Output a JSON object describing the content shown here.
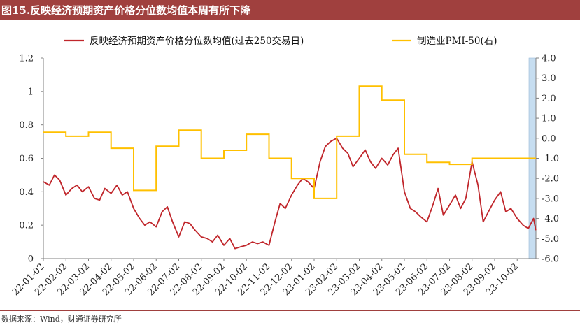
{
  "title": "图15.反映经济预期资产价格分位数均值本周有所下降",
  "source": "数据来源：Wind，财通证券研究所",
  "colors": {
    "title_bg": "#a0403e",
    "series1": "#c0262b",
    "series2": "#ffc000",
    "shade": "#c6ddf0"
  },
  "chart_data": {
    "type": "line",
    "left_axis": {
      "ylim": [
        0,
        1.2
      ],
      "ticks": [
        "0",
        "0.2",
        "0.4",
        "0.6",
        "0.8",
        "1",
        "1.2"
      ]
    },
    "right_axis": {
      "ylim": [
        -6,
        4
      ],
      "ticks": [
        "-6.0",
        "-5.0",
        "-4.0",
        "-3.0",
        "-2.0",
        "-1.0",
        "0.0",
        "1.0",
        "2.0",
        "3.0",
        "4.0"
      ]
    },
    "x_categories": [
      "22-01-02",
      "22-02-02",
      "22-03-02",
      "22-04-02",
      "22-05-02",
      "22-06-02",
      "22-07-02",
      "22-08-02",
      "22-09-02",
      "22-10-02",
      "22-11-02",
      "22-12-02",
      "23-01-02",
      "23-02-02",
      "23-03-02",
      "23-04-02",
      "23-05-02",
      "23-06-02",
      "23-07-02",
      "23-08-02",
      "23-09-02",
      "23-10-02"
    ],
    "grid": false,
    "legend_placement": "top",
    "series": [
      {
        "name": "反映经济预期资产价格分位数均值(过去250交易日)",
        "axis": "left",
        "x": [
          "22-01-02",
          "22-01-10",
          "22-01-17",
          "22-01-24",
          "22-02-02",
          "22-02-10",
          "22-02-17",
          "22-02-24",
          "22-03-02",
          "22-03-10",
          "22-03-17",
          "22-03-24",
          "22-04-02",
          "22-04-10",
          "22-04-17",
          "22-04-24",
          "22-05-02",
          "22-05-10",
          "22-05-17",
          "22-05-24",
          "22-06-02",
          "22-06-10",
          "22-06-17",
          "22-06-24",
          "22-07-02",
          "22-07-10",
          "22-07-17",
          "22-07-24",
          "22-08-02",
          "22-08-10",
          "22-08-17",
          "22-08-24",
          "22-09-02",
          "22-09-10",
          "22-09-17",
          "22-09-24",
          "22-10-02",
          "22-10-10",
          "22-10-17",
          "22-10-24",
          "22-11-02",
          "22-11-10",
          "22-11-17",
          "22-11-24",
          "22-12-02",
          "22-12-10",
          "22-12-17",
          "22-12-24",
          "23-01-02",
          "23-01-10",
          "23-01-17",
          "23-01-24",
          "23-02-02",
          "23-02-10",
          "23-02-17",
          "23-02-24",
          "23-03-02",
          "23-03-10",
          "23-03-17",
          "23-03-24",
          "23-04-02",
          "23-04-10",
          "23-04-17",
          "23-04-24",
          "23-05-02",
          "23-05-10",
          "23-05-17",
          "23-05-24",
          "23-06-02",
          "23-06-10",
          "23-06-17",
          "23-06-24",
          "23-07-02",
          "23-07-10",
          "23-07-17",
          "23-07-24",
          "23-08-02",
          "23-08-10",
          "23-08-17",
          "23-08-24",
          "23-09-02",
          "23-09-10",
          "23-09-17",
          "23-09-24",
          "23-10-02",
          "23-10-10",
          "23-10-17",
          "23-10-24",
          "23-10-27"
        ],
        "values": [
          0.46,
          0.44,
          0.5,
          0.47,
          0.38,
          0.42,
          0.44,
          0.4,
          0.43,
          0.36,
          0.35,
          0.42,
          0.39,
          0.44,
          0.38,
          0.4,
          0.3,
          0.24,
          0.2,
          0.22,
          0.19,
          0.28,
          0.31,
          0.22,
          0.13,
          0.22,
          0.21,
          0.17,
          0.13,
          0.12,
          0.1,
          0.14,
          0.08,
          0.12,
          0.06,
          0.07,
          0.08,
          0.1,
          0.09,
          0.1,
          0.08,
          0.22,
          0.33,
          0.3,
          0.38,
          0.44,
          0.48,
          0.46,
          0.42,
          0.58,
          0.67,
          0.7,
          0.72,
          0.66,
          0.63,
          0.55,
          0.6,
          0.65,
          0.58,
          0.54,
          0.6,
          0.56,
          0.62,
          0.66,
          0.4,
          0.3,
          0.28,
          0.25,
          0.22,
          0.32,
          0.42,
          0.26,
          0.32,
          0.38,
          0.3,
          0.36,
          0.58,
          0.44,
          0.22,
          0.28,
          0.35,
          0.4,
          0.28,
          0.3,
          0.24,
          0.2,
          0.18,
          0.24,
          0.17
        ]
      },
      {
        "name": "制造业PMI-50(右)",
        "axis": "right",
        "x": [
          "22-01-02",
          "22-02-02",
          "22-03-02",
          "22-04-02",
          "22-05-02",
          "22-06-02",
          "22-07-02",
          "22-08-02",
          "22-09-02",
          "22-10-02",
          "22-11-02",
          "22-12-02",
          "23-01-02",
          "23-02-02",
          "23-03-02",
          "23-04-02",
          "23-05-02",
          "23-06-02",
          "23-07-02",
          "23-08-02",
          "23-09-02",
          "23-10-02"
        ],
        "values": [
          0.3,
          0.1,
          0.3,
          -0.5,
          -2.6,
          -0.4,
          0.4,
          -1.0,
          -0.6,
          0.2,
          -1.0,
          -2.0,
          -3.0,
          0.1,
          2.6,
          1.9,
          -0.8,
          -1.2,
          -1.3,
          -1.0,
          -1.0,
          -1.0
        ]
      }
    ]
  }
}
